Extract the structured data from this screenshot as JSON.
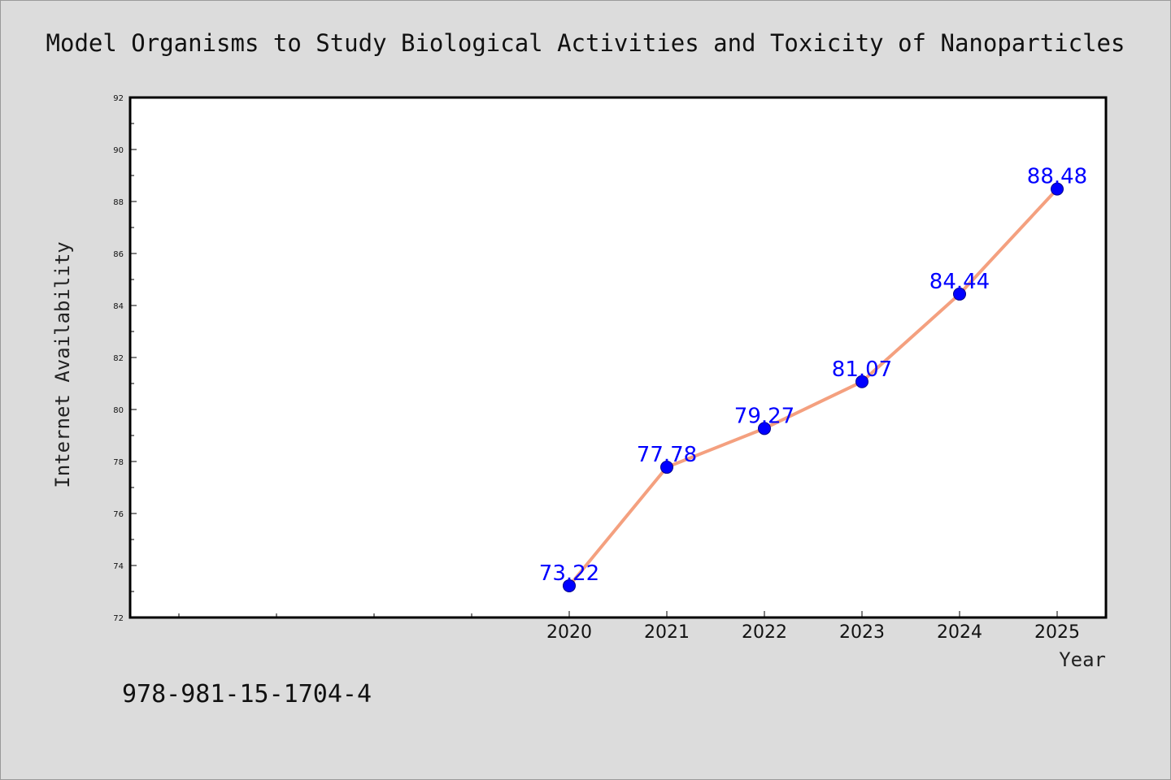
{
  "chart_data": {
    "type": "line",
    "title": "Model Organisms to Study Biological Activities and Toxicity of Nanoparticles",
    "xlabel": "Year",
    "ylabel": "Internet Availability",
    "x": [
      "2020",
      "2021",
      "2022",
      "2023",
      "2024",
      "2025"
    ],
    "series": [
      {
        "values": [
          73.22,
          77.78,
          79.27,
          81.07,
          84.44,
          88.48
        ],
        "labels": [
          "73.22",
          "77.78",
          "79.27",
          "81.07",
          "84.44",
          "88.48"
        ],
        "line_color": "#f4a07f",
        "marker_color": "#0000ff"
      }
    ],
    "ylim": [
      72,
      92
    ],
    "yticks": [
      "72",
      "74",
      "76",
      "78",
      "80",
      "82",
      "84",
      "86",
      "88",
      "90",
      "92"
    ],
    "grid": false,
    "legend": "none"
  },
  "annotation": "978-981-15-1704-4"
}
